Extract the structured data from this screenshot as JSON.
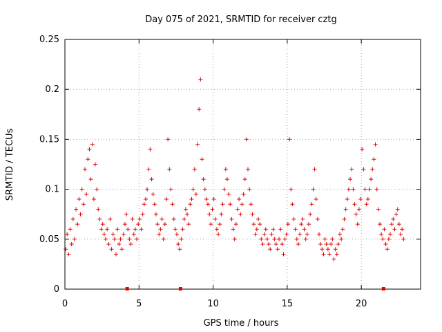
{
  "chart_data": {
    "type": "scatter",
    "title": "Day 075 of 2021, SRMTID for receiver cztg",
    "xlabel": "GPS time / hours",
    "ylabel": "SRMTID / TECUs",
    "xlim": [
      0,
      24
    ],
    "ylim": [
      0,
      0.25
    ],
    "xticks": [
      0,
      5,
      10,
      15,
      20
    ],
    "xtick_labels": [
      "0",
      "5",
      "10",
      "15",
      "20"
    ],
    "yticks": [
      0,
      0.05,
      0.1,
      0.15,
      0.2,
      0.25
    ],
    "ytick_labels": [
      "0",
      "0.05",
      "0.1",
      "0.15",
      "0.2",
      "0.25"
    ],
    "grid": true,
    "marker": "+",
    "color": "#e00000",
    "series": [
      {
        "name": "SRMTID",
        "x": [
          0.05,
          0.15,
          0.25,
          0.35,
          0.45,
          0.55,
          0.65,
          0.75,
          0.85,
          0.95,
          1.05,
          1.15,
          1.25,
          1.35,
          1.45,
          1.55,
          1.65,
          1.75,
          1.85,
          1.95,
          2.05,
          2.15,
          2.25,
          2.35,
          2.45,
          2.55,
          2.65,
          2.75,
          2.85,
          2.95,
          3.05,
          3.15,
          3.25,
          3.35,
          3.45,
          3.55,
          3.65,
          3.75,
          3.85,
          3.95,
          4.05,
          4.15,
          4.25,
          4.35,
          4.45,
          4.55,
          4.65,
          4.75,
          4.85,
          4.95,
          5.05,
          5.15,
          5.25,
          5.35,
          5.45,
          5.55,
          5.65,
          5.75,
          5.85,
          5.95,
          6.05,
          6.15,
          6.25,
          6.35,
          6.45,
          6.55,
          6.65,
          6.75,
          6.85,
          6.95,
          7.05,
          7.15,
          7.25,
          7.35,
          7.45,
          7.55,
          7.65,
          7.75,
          7.85,
          7.95,
          8.05,
          8.15,
          8.25,
          8.35,
          8.45,
          8.55,
          8.65,
          8.75,
          8.85,
          8.95,
          9.05,
          9.15,
          9.25,
          9.35,
          9.45,
          9.55,
          9.65,
          9.75,
          9.85,
          9.95,
          10.05,
          10.15,
          10.25,
          10.35,
          10.45,
          10.55,
          10.65,
          10.75,
          10.85,
          10.95,
          11.05,
          11.15,
          11.25,
          11.35,
          11.45,
          11.55,
          11.65,
          11.75,
          11.85,
          11.95,
          12.05,
          12.15,
          12.25,
          12.35,
          12.45,
          12.55,
          12.65,
          12.75,
          12.85,
          12.95,
          13.05,
          13.15,
          13.25,
          13.35,
          13.45,
          13.55,
          13.65,
          13.75,
          13.85,
          13.95,
          14.05,
          14.15,
          14.25,
          14.35,
          14.45,
          14.55,
          14.65,
          14.75,
          14.85,
          14.95,
          15.05,
          15.15,
          15.25,
          15.35,
          15.45,
          15.55,
          15.65,
          15.75,
          15.85,
          15.95,
          16.05,
          16.15,
          16.25,
          16.35,
          16.45,
          16.55,
          16.65,
          16.75,
          16.85,
          16.95,
          17.05,
          17.15,
          17.25,
          17.35,
          17.45,
          17.55,
          17.65,
          17.75,
          17.85,
          17.95,
          18.05,
          18.15,
          18.25,
          18.35,
          18.45,
          18.55,
          18.65,
          18.75,
          18.85,
          18.95,
          19.05,
          19.15,
          19.25,
          19.35,
          19.45,
          19.55,
          19.65,
          19.75,
          19.85,
          19.95,
          20.05,
          20.15,
          20.25,
          20.35,
          20.45,
          20.55,
          20.65,
          20.75,
          20.85,
          20.95,
          21.05,
          21.15,
          21.25,
          21.35,
          21.45,
          21.55,
          21.65,
          21.75,
          21.85,
          21.95,
          22.05,
          22.15,
          22.25,
          22.35,
          22.45,
          22.55,
          22.65,
          22.75,
          22.85
        ],
        "y": [
          0.04,
          0.055,
          0.035,
          0.06,
          0.045,
          0.07,
          0.05,
          0.08,
          0.065,
          0.09,
          0.075,
          0.1,
          0.085,
          0.12,
          0.095,
          0.13,
          0.14,
          0.11,
          0.145,
          0.09,
          0.125,
          0.1,
          0.08,
          0.07,
          0.06,
          0.065,
          0.055,
          0.05,
          0.06,
          0.045,
          0.07,
          0.04,
          0.055,
          0.05,
          0.035,
          0.06,
          0.045,
          0.05,
          0.04,
          0.055,
          0.065,
          0.075,
          0.06,
          0.05,
          0.045,
          0.07,
          0.055,
          0.06,
          0.05,
          0.065,
          0.07,
          0.06,
          0.075,
          0.085,
          0.09,
          0.1,
          0.12,
          0.14,
          0.11,
          0.095,
          0.085,
          0.075,
          0.065,
          0.055,
          0.06,
          0.07,
          0.05,
          0.065,
          0.09,
          0.15,
          0.12,
          0.1,
          0.085,
          0.07,
          0.06,
          0.055,
          0.045,
          0.04,
          0.05,
          0.06,
          0.07,
          0.08,
          0.075,
          0.065,
          0.085,
          0.09,
          0.1,
          0.12,
          0.095,
          0.145,
          0.18,
          0.21,
          0.13,
          0.11,
          0.1,
          0.09,
          0.085,
          0.075,
          0.065,
          0.08,
          0.09,
          0.07,
          0.06,
          0.055,
          0.065,
          0.075,
          0.085,
          0.1,
          0.12,
          0.11,
          0.095,
          0.085,
          0.07,
          0.06,
          0.05,
          0.065,
          0.08,
          0.09,
          0.075,
          0.085,
          0.095,
          0.11,
          0.15,
          0.12,
          0.1,
          0.085,
          0.075,
          0.065,
          0.055,
          0.06,
          0.07,
          0.065,
          0.05,
          0.045,
          0.055,
          0.06,
          0.05,
          0.045,
          0.04,
          0.055,
          0.06,
          0.05,
          0.045,
          0.04,
          0.05,
          0.06,
          0.045,
          0.035,
          0.05,
          0.055,
          0.065,
          0.15,
          0.1,
          0.085,
          0.07,
          0.06,
          0.05,
          0.045,
          0.055,
          0.065,
          0.07,
          0.06,
          0.05,
          0.055,
          0.065,
          0.075,
          0.085,
          0.1,
          0.12,
          0.09,
          0.07,
          0.055,
          0.045,
          0.04,
          0.035,
          0.05,
          0.045,
          0.04,
          0.035,
          0.045,
          0.05,
          0.03,
          0.04,
          0.035,
          0.045,
          0.055,
          0.05,
          0.06,
          0.07,
          0.08,
          0.09,
          0.1,
          0.11,
          0.12,
          0.1,
          0.085,
          0.075,
          0.065,
          0.08,
          0.09,
          0.14,
          0.12,
          0.1,
          0.085,
          0.09,
          0.1,
          0.11,
          0.12,
          0.13,
          0.145,
          0.1,
          0.08,
          0.065,
          0.055,
          0.05,
          0.06,
          0.045,
          0.04,
          0.05,
          0.055,
          0.065,
          0.07,
          0.06,
          0.075,
          0.08,
          0.065,
          0.055,
          0.06,
          0.05
        ]
      }
    ],
    "axis_markers_x": [
      4.2,
      7.8,
      21.5
    ]
  }
}
